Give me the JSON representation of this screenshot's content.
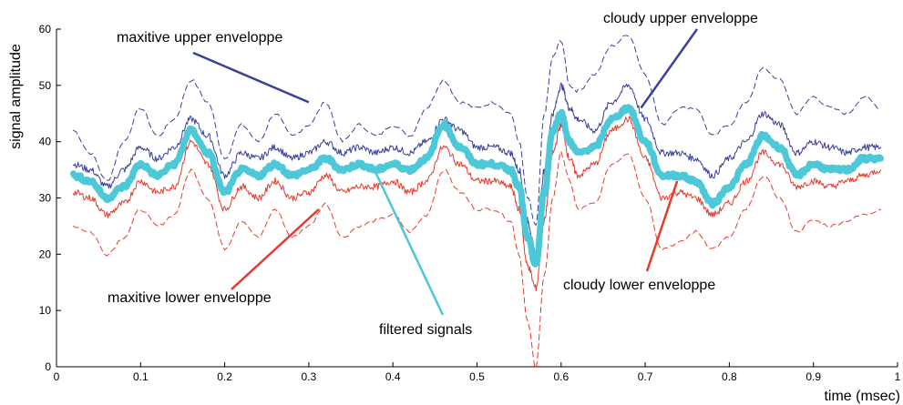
{
  "chart_data": {
    "type": "line",
    "title": "",
    "xlabel": "time (msec)",
    "ylabel": "signal amplitude",
    "xlim": [
      0,
      1
    ],
    "ylim": [
      0,
      60
    ],
    "x_ticks": [
      "0",
      "0.1",
      "0.2",
      "0.3",
      "0.4",
      "0.5",
      "0.6",
      "0.7",
      "0.8",
      "0.9",
      "1"
    ],
    "y_ticks": [
      "0",
      "10",
      "20",
      "30",
      "40",
      "50",
      "60"
    ],
    "grid": false,
    "x": [
      0.02,
      0.04,
      0.06,
      0.08,
      0.1,
      0.12,
      0.14,
      0.16,
      0.18,
      0.2,
      0.22,
      0.24,
      0.26,
      0.28,
      0.3,
      0.32,
      0.34,
      0.36,
      0.38,
      0.4,
      0.42,
      0.44,
      0.46,
      0.48,
      0.5,
      0.52,
      0.54,
      0.55,
      0.56,
      0.57,
      0.58,
      0.59,
      0.6,
      0.61,
      0.62,
      0.64,
      0.66,
      0.68,
      0.7,
      0.72,
      0.74,
      0.76,
      0.78,
      0.8,
      0.82,
      0.84,
      0.86,
      0.88,
      0.9,
      0.92,
      0.94,
      0.96,
      0.98
    ],
    "series": [
      {
        "role": "maxitive-upper",
        "color": "#3a3f9a",
        "style": "dashed",
        "values": [
          42,
          38,
          33,
          40,
          46,
          41,
          44,
          51,
          47,
          37,
          43,
          40,
          45,
          41,
          43,
          47,
          40,
          43,
          41,
          43,
          41,
          46,
          51,
          47,
          46,
          47,
          45,
          40,
          30,
          25,
          45,
          55,
          58,
          50,
          49,
          52,
          57,
          59,
          52,
          43,
          46,
          46,
          41,
          43,
          47,
          53,
          51,
          45,
          48,
          46,
          45,
          48,
          46
        ]
      },
      {
        "role": "cloudy-upper",
        "color": "#3a3f9a",
        "style": "solid",
        "values": [
          36,
          35,
          32,
          35,
          39,
          37,
          39,
          44,
          41,
          34,
          38,
          37,
          39,
          37,
          38,
          40,
          38,
          39,
          38,
          39,
          38,
          40,
          44,
          42,
          39,
          39,
          38,
          35,
          26,
          20,
          35,
          45,
          50,
          46,
          44,
          42,
          47,
          50,
          44,
          38,
          38,
          37,
          34,
          37,
          40,
          45,
          43,
          38,
          40,
          39,
          38,
          39,
          39
        ]
      },
      {
        "role": "filtered-signal",
        "color": "#4cc8d8",
        "style": "thick",
        "values": [
          34,
          33,
          30,
          32,
          36,
          34,
          36,
          42,
          38,
          31,
          35,
          34,
          36,
          34,
          35,
          37,
          35,
          36,
          35,
          36,
          35,
          37,
          43,
          39,
          36,
          36,
          35,
          32,
          23,
          18,
          31,
          42,
          45,
          40,
          38,
          39,
          44,
          46,
          40,
          34,
          34,
          33,
          29,
          32,
          36,
          41,
          39,
          34,
          36,
          35,
          35,
          37,
          37
        ]
      },
      {
        "role": "cloudy-lower",
        "color": "#e53b2c",
        "style": "solid",
        "values": [
          31,
          30,
          27,
          29,
          33,
          31,
          32,
          40,
          36,
          28,
          32,
          30,
          33,
          30,
          31,
          34,
          31,
          32,
          32,
          33,
          31,
          33,
          39,
          36,
          33,
          33,
          32,
          28,
          18,
          14,
          26,
          38,
          43,
          37,
          34,
          36,
          42,
          44,
          37,
          30,
          31,
          30,
          27,
          29,
          33,
          38,
          36,
          32,
          33,
          32,
          33,
          34,
          35
        ]
      },
      {
        "role": "maxitive-lower",
        "color": "#e53b2c",
        "style": "dashed",
        "values": [
          25,
          24,
          20,
          23,
          28,
          25,
          27,
          35,
          30,
          21,
          26,
          23,
          28,
          23,
          25,
          29,
          23,
          25,
          26,
          27,
          24,
          27,
          35,
          31,
          28,
          28,
          26,
          20,
          8,
          0,
          16,
          30,
          38,
          33,
          28,
          29,
          36,
          38,
          30,
          21,
          22,
          24,
          21,
          23,
          28,
          34,
          30,
          24,
          26,
          25,
          26,
          27,
          28
        ]
      }
    ],
    "annotations": [
      {
        "text": "maxitive upper enveloppe",
        "target": "maxitive-upper",
        "color": "#3a3f9a",
        "x": 0.3,
        "y": 47
      },
      {
        "text": "cloudy upper enveloppe",
        "target": "cloudy-upper",
        "color": "#3a3f9a",
        "x": 0.695,
        "y": 46
      },
      {
        "text": "maxitive lower enveloppe",
        "target": "maxitive-lower",
        "color": "#e53b2c",
        "x": 0.312,
        "y": 28
      },
      {
        "text": "cloudy lower enveloppe",
        "target": "cloudy-lower",
        "color": "#e53b2c",
        "x": 0.738,
        "y": 33
      },
      {
        "text": "filtered signals",
        "target": "filtered-signal",
        "color": "#4cc8d8",
        "x": 0.378,
        "y": 35
      }
    ]
  }
}
